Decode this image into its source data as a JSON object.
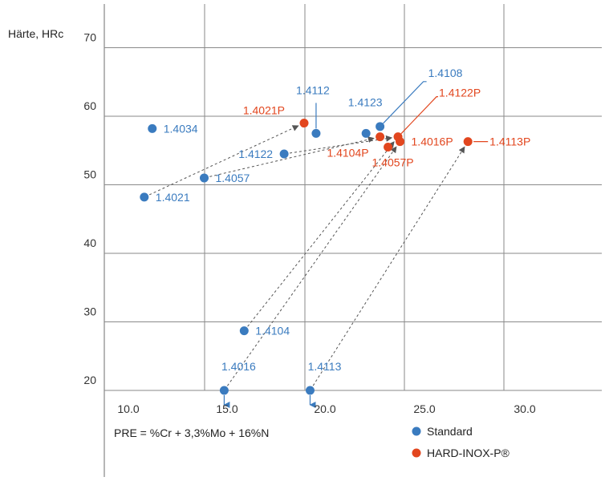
{
  "chart_data": {
    "type": "scatter",
    "ylabel": "Härte, HRc",
    "xlabel": "PRE = %Cr + 3,3%Mo + 16%N",
    "x_ticks": [
      "10.0",
      "15.0",
      "20.0",
      "25.0",
      "30.0"
    ],
    "y_ticks": [
      "20",
      "30",
      "40",
      "50",
      "60",
      "70"
    ],
    "xlim": [
      10.0,
      30.0
    ],
    "ylim": [
      20,
      70
    ],
    "grid": true,
    "legend_position": "bottom-right",
    "colors": {
      "standard": "#3a7bbf",
      "hard": "#e2461e"
    },
    "series": [
      {
        "name": "Standard",
        "points": [
          {
            "label": "1.4034",
            "x": 12.4,
            "y": 58.2
          },
          {
            "label": "1.4021",
            "x": 12.0,
            "y": 48.2
          },
          {
            "label": "1.4057",
            "x": 15.0,
            "y": 51.0
          },
          {
            "label": "1.4122",
            "x": 19.0,
            "y": 54.5
          },
          {
            "label": "1.4112",
            "x": 20.6,
            "y": 57.5
          },
          {
            "label": "1.4123",
            "x": 23.1,
            "y": 57.5
          },
          {
            "label": "1.4108",
            "x": 23.8,
            "y": 58.5
          },
          {
            "label": "1.4104",
            "x": 17.0,
            "y": 28.7
          },
          {
            "label": "1.4016",
            "x": 16.0,
            "y": 20.0
          },
          {
            "label": "1.4113",
            "x": 20.3,
            "y": 20.0
          }
        ]
      },
      {
        "name": "HARD-INOX-P®",
        "points": [
          {
            "label": "1.4021P",
            "x": 20.0,
            "y": 59.0
          },
          {
            "label": "1.4104P",
            "x": 23.8,
            "y": 57.0
          },
          {
            "label": "1.4057P",
            "x": 24.2,
            "y": 55.5
          },
          {
            "label": "1.4122P",
            "x": 24.7,
            "y": 57.0
          },
          {
            "label": "1.4016P",
            "x": 24.8,
            "y": 56.3
          },
          {
            "label": "1.4113P",
            "x": 28.2,
            "y": 56.3
          }
        ]
      }
    ],
    "arrows": [
      {
        "from": "1.4021",
        "to": "1.4021P"
      },
      {
        "from": "1.4057",
        "to": "1.4104P"
      },
      {
        "from": "1.4122",
        "to": "1.4122P"
      },
      {
        "from": "1.4104",
        "to": "1.4122P"
      },
      {
        "from": "1.4016",
        "to": "1.4016P"
      },
      {
        "from": "1.4113",
        "to": "1.4113P"
      }
    ]
  }
}
